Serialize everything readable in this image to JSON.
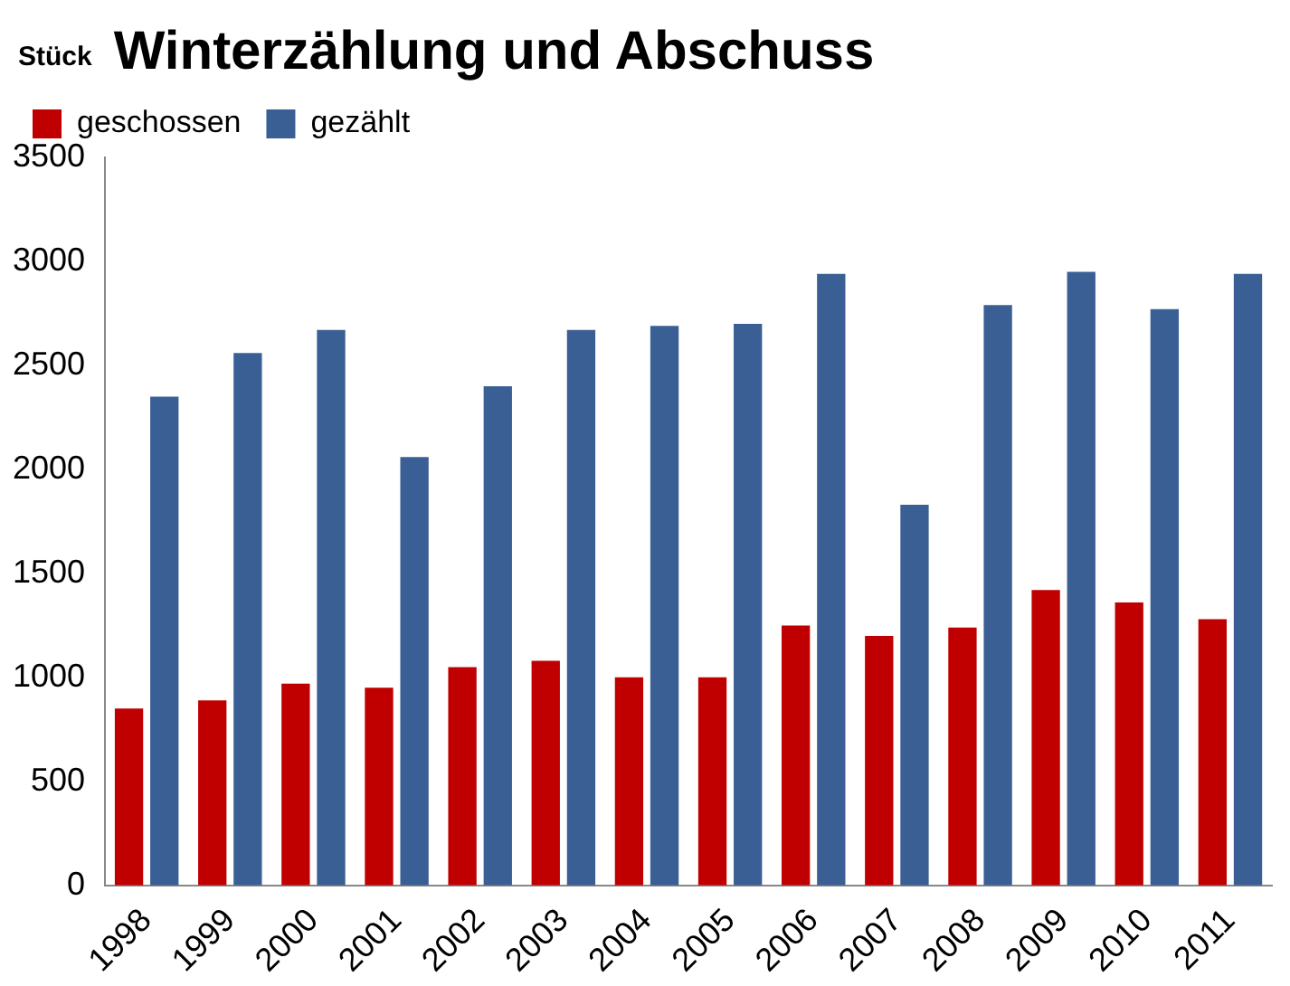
{
  "chart_data": {
    "type": "bar",
    "title": "Winterzählung und Abschuss",
    "ylabel": "Stück",
    "categories": [
      "1998",
      "1999",
      "2000",
      "2001",
      "2002",
      "2003",
      "2004",
      "2005",
      "2006",
      "2007",
      "2008",
      "2009",
      "2010",
      "2011"
    ],
    "series": [
      {
        "name": "geschossen",
        "color": "#c00000",
        "values": [
          850,
          890,
          970,
          950,
          1050,
          1080,
          1000,
          1000,
          1250,
          1200,
          1240,
          1420,
          1360,
          1280
        ]
      },
      {
        "name": "gezählt",
        "color": "#3a5f94",
        "values": [
          2350,
          2560,
          2670,
          2060,
          2400,
          2670,
          2690,
          2700,
          2940,
          1830,
          2790,
          2950,
          2770,
          2940
        ]
      }
    ],
    "ylim": [
      0,
      3500
    ],
    "yticks": [
      0,
      500,
      1000,
      1500,
      2000,
      2500,
      3000,
      3500
    ],
    "grid": false,
    "legend": "top left"
  }
}
